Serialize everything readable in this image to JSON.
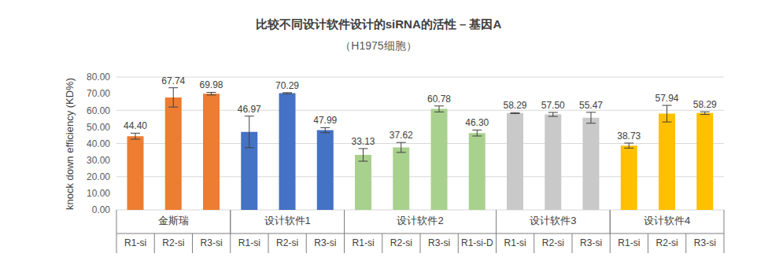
{
  "chart_data": {
    "type": "bar",
    "title": "比较不同设计软件设计的siRNA的活性 – 基因A",
    "subtitle": "（H1975细胞）",
    "y_label": "knock down efficiency (KD%)",
    "categories": [
      "R1-si",
      "R2-si",
      "R3-si",
      "R1-si",
      "R2-si",
      "R3-si",
      "R1-si",
      "R2-si",
      "R3-si",
      "R1-si-D",
      "R1-si",
      "R2-si",
      "R3-si",
      "R1-si",
      "R2-si",
      "R3-si"
    ],
    "groups": [
      "金斯瑞",
      "金斯瑞",
      "金斯瑞",
      "设计软件1",
      "设计软件1",
      "设计软件1",
      "设计软件2",
      "设计软件2",
      "设计软件2",
      "设计软件2",
      "设计软件3",
      "设计软件3",
      "设计软件3",
      "设计软件4",
      "设计软件4",
      "设计软件4"
    ],
    "values": [
      44.4,
      67.74,
      69.98,
      46.97,
      70.29,
      47.99,
      33.13,
      37.62,
      60.78,
      46.3,
      58.29,
      57.5,
      55.47,
      38.73,
      57.94,
      58.29
    ],
    "value_labels": [
      "44.40",
      "67.74",
      "69.98",
      "46.97",
      "70.29",
      "47.99",
      "33.13",
      "37.62",
      "60.78",
      "46.30",
      "58.29",
      "57.50",
      "55.47",
      "38.73",
      "57.94",
      "58.29"
    ],
    "errors": [
      1.8,
      5.8,
      0.8,
      9.5,
      0.3,
      1.5,
      3.8,
      3.0,
      1.8,
      1.8,
      0.3,
      1.2,
      3.3,
      1.5,
      5.0,
      0.8
    ],
    "colors": [
      "#ed7d31",
      "#ed7d31",
      "#ed7d31",
      "#4472c4",
      "#4472c4",
      "#4472c4",
      "#a9d18e",
      "#a9d18e",
      "#a9d18e",
      "#a9d18e",
      "#c9c9c9",
      "#c9c9c9",
      "#c9c9c9",
      "#ffc000",
      "#ffc000",
      "#ffc000"
    ],
    "ylim": [
      0,
      80
    ],
    "yticks": [
      {
        "value": 0,
        "label": "0.00"
      },
      {
        "value": 10,
        "label": "10.00"
      },
      {
        "value": 20,
        "label": "20.00"
      },
      {
        "value": 30,
        "label": "30.00"
      },
      {
        "value": 40,
        "label": "40.00"
      },
      {
        "value": 50,
        "label": "50.00"
      },
      {
        "value": 60,
        "label": "60.00"
      },
      {
        "value": 70,
        "label": "70.00"
      },
      {
        "value": 80,
        "label": "80.00"
      }
    ],
    "grid": true,
    "data_labels": true
  }
}
